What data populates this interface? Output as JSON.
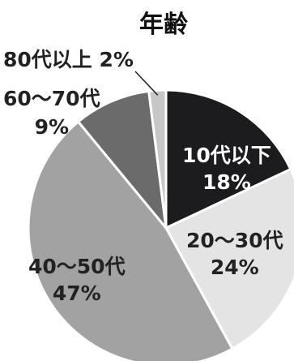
{
  "chart_data": {
    "type": "pie",
    "title": "年齢",
    "slices": [
      {
        "label": "10代以下",
        "value": 18,
        "value_label": "18%",
        "color": "#1c1b1d",
        "text_color": "#ffffff"
      },
      {
        "label": "20〜30代",
        "value": 24,
        "value_label": "24%",
        "color": "#e4e4e4",
        "text_color": "#222222"
      },
      {
        "label": "40〜50代",
        "value": 47,
        "value_label": "47%",
        "color": "#a2a2a2",
        "text_color": "#222222"
      },
      {
        "label": "60〜70代",
        "value": 9,
        "value_label": "9%",
        "color": "#6b6b6b",
        "text_color": "#222222"
      },
      {
        "label": "80代以上",
        "value": 2,
        "value_label": "2%",
        "color": "#c7c7c7",
        "text_color": "#222222"
      }
    ],
    "legend": "none",
    "start": "top",
    "direction": "clockwise"
  }
}
